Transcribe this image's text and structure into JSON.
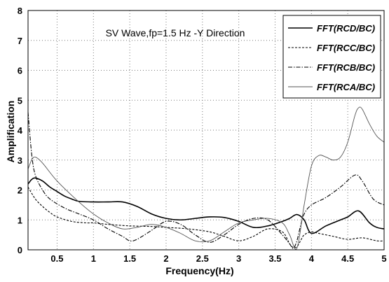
{
  "chart_data": {
    "type": "line",
    "title": "",
    "annotation": "SV Wave,fp=1.5 Hz -Y Direction",
    "xlabel": "Frequency(Hz)",
    "ylabel": "Amplification",
    "xlim": [
      0.1,
      5
    ],
    "ylim": [
      0,
      8
    ],
    "xticks": [
      0.5,
      1,
      1.5,
      2,
      2.5,
      3,
      3.5,
      4,
      4.5,
      5
    ],
    "xtick_labels": [
      "0.5",
      "1",
      "1.5",
      "2",
      "2.5",
      "3",
      "3.5",
      "4",
      "4.5",
      "5"
    ],
    "yticks": [
      0,
      1,
      2,
      3,
      4,
      5,
      6,
      7,
      8
    ],
    "ytick_labels": [
      "0",
      "1",
      "2",
      "3",
      "4",
      "5",
      "6",
      "7",
      "8"
    ],
    "grid": true,
    "legend_position": "top-right",
    "series": [
      {
        "name": "FFT(RCD/BC)",
        "color": "#000000",
        "dash": "solid",
        "x": [
          0.1,
          0.15,
          0.2,
          0.3,
          0.4,
          0.5,
          0.6,
          0.7,
          0.8,
          1.0,
          1.2,
          1.4,
          1.6,
          1.8,
          2.0,
          2.2,
          2.4,
          2.6,
          2.8,
          3.0,
          3.2,
          3.4,
          3.6,
          3.7,
          3.8,
          3.9,
          4.0,
          4.2,
          4.4,
          4.5,
          4.65,
          4.8,
          4.9,
          5.0
        ],
        "y": [
          2.2,
          2.35,
          2.4,
          2.3,
          2.1,
          1.95,
          1.8,
          1.7,
          1.62,
          1.6,
          1.6,
          1.6,
          1.45,
          1.2,
          1.05,
          1.0,
          1.05,
          1.1,
          1.08,
          0.95,
          0.75,
          0.8,
          0.95,
          1.05,
          1.18,
          1.0,
          0.55,
          0.8,
          1.0,
          1.1,
          1.3,
          0.9,
          0.75,
          0.7
        ]
      },
      {
        "name": "FFT(RCC/BC)",
        "color": "#000000",
        "dash": "dotted",
        "x": [
          0.1,
          0.2,
          0.3,
          0.4,
          0.5,
          0.7,
          0.9,
          1.0,
          1.2,
          1.5,
          1.8,
          2.0,
          2.3,
          2.6,
          2.8,
          3.0,
          3.2,
          3.4,
          3.6,
          3.7,
          3.75,
          3.8,
          3.85,
          3.9,
          4.0,
          4.1,
          4.3,
          4.5,
          4.7,
          4.9,
          5.0
        ],
        "y": [
          2.1,
          1.7,
          1.45,
          1.25,
          1.1,
          0.95,
          0.9,
          0.9,
          0.85,
          0.8,
          0.78,
          0.75,
          0.7,
          0.6,
          0.45,
          0.3,
          0.45,
          0.7,
          0.6,
          0.2,
          0.08,
          0.1,
          0.3,
          0.5,
          0.6,
          0.55,
          0.45,
          0.35,
          0.4,
          0.3,
          0.3
        ]
      },
      {
        "name": "FFT(RCB/BC)",
        "color": "#000000",
        "dash": "dashdot",
        "x": [
          0.1,
          0.15,
          0.2,
          0.3,
          0.4,
          0.6,
          0.8,
          1.0,
          1.2,
          1.4,
          1.5,
          1.6,
          1.8,
          2.0,
          2.2,
          2.4,
          2.6,
          2.8,
          3.0,
          3.2,
          3.4,
          3.6,
          3.7,
          3.75,
          3.8,
          3.85,
          3.9,
          4.0,
          4.2,
          4.4,
          4.6,
          4.7,
          4.85,
          5.0
        ],
        "y": [
          4.6,
          3.2,
          2.5,
          2.0,
          1.7,
          1.4,
          1.2,
          1.0,
          0.7,
          0.45,
          0.3,
          0.35,
          0.65,
          0.95,
          0.85,
          0.5,
          0.25,
          0.5,
          0.85,
          1.05,
          1.0,
          0.5,
          0.2,
          0.05,
          0.3,
          0.8,
          1.2,
          1.5,
          1.75,
          2.1,
          2.5,
          2.3,
          1.7,
          1.5
        ]
      },
      {
        "name": "FFT(RCA/BC)",
        "color": "#555555",
        "dash": "solid-thin",
        "x": [
          0.1,
          0.15,
          0.2,
          0.3,
          0.5,
          0.8,
          1.0,
          1.2,
          1.4,
          1.6,
          1.8,
          2.0,
          2.2,
          2.4,
          2.6,
          2.8,
          3.0,
          3.2,
          3.4,
          3.6,
          3.7,
          3.8,
          3.9,
          4.0,
          4.1,
          4.2,
          4.3,
          4.4,
          4.5,
          4.6,
          4.65,
          4.7,
          4.8,
          4.9,
          5.0
        ],
        "y": [
          2.7,
          3.0,
          3.1,
          2.9,
          2.3,
          1.6,
          1.2,
          0.9,
          0.7,
          0.75,
          0.85,
          0.75,
          0.55,
          0.3,
          0.3,
          0.6,
          0.9,
          1.0,
          1.05,
          0.9,
          0.5,
          0.05,
          1.5,
          2.8,
          3.15,
          3.1,
          3.0,
          3.1,
          3.6,
          4.5,
          4.75,
          4.7,
          4.2,
          3.8,
          3.6
        ]
      }
    ]
  }
}
